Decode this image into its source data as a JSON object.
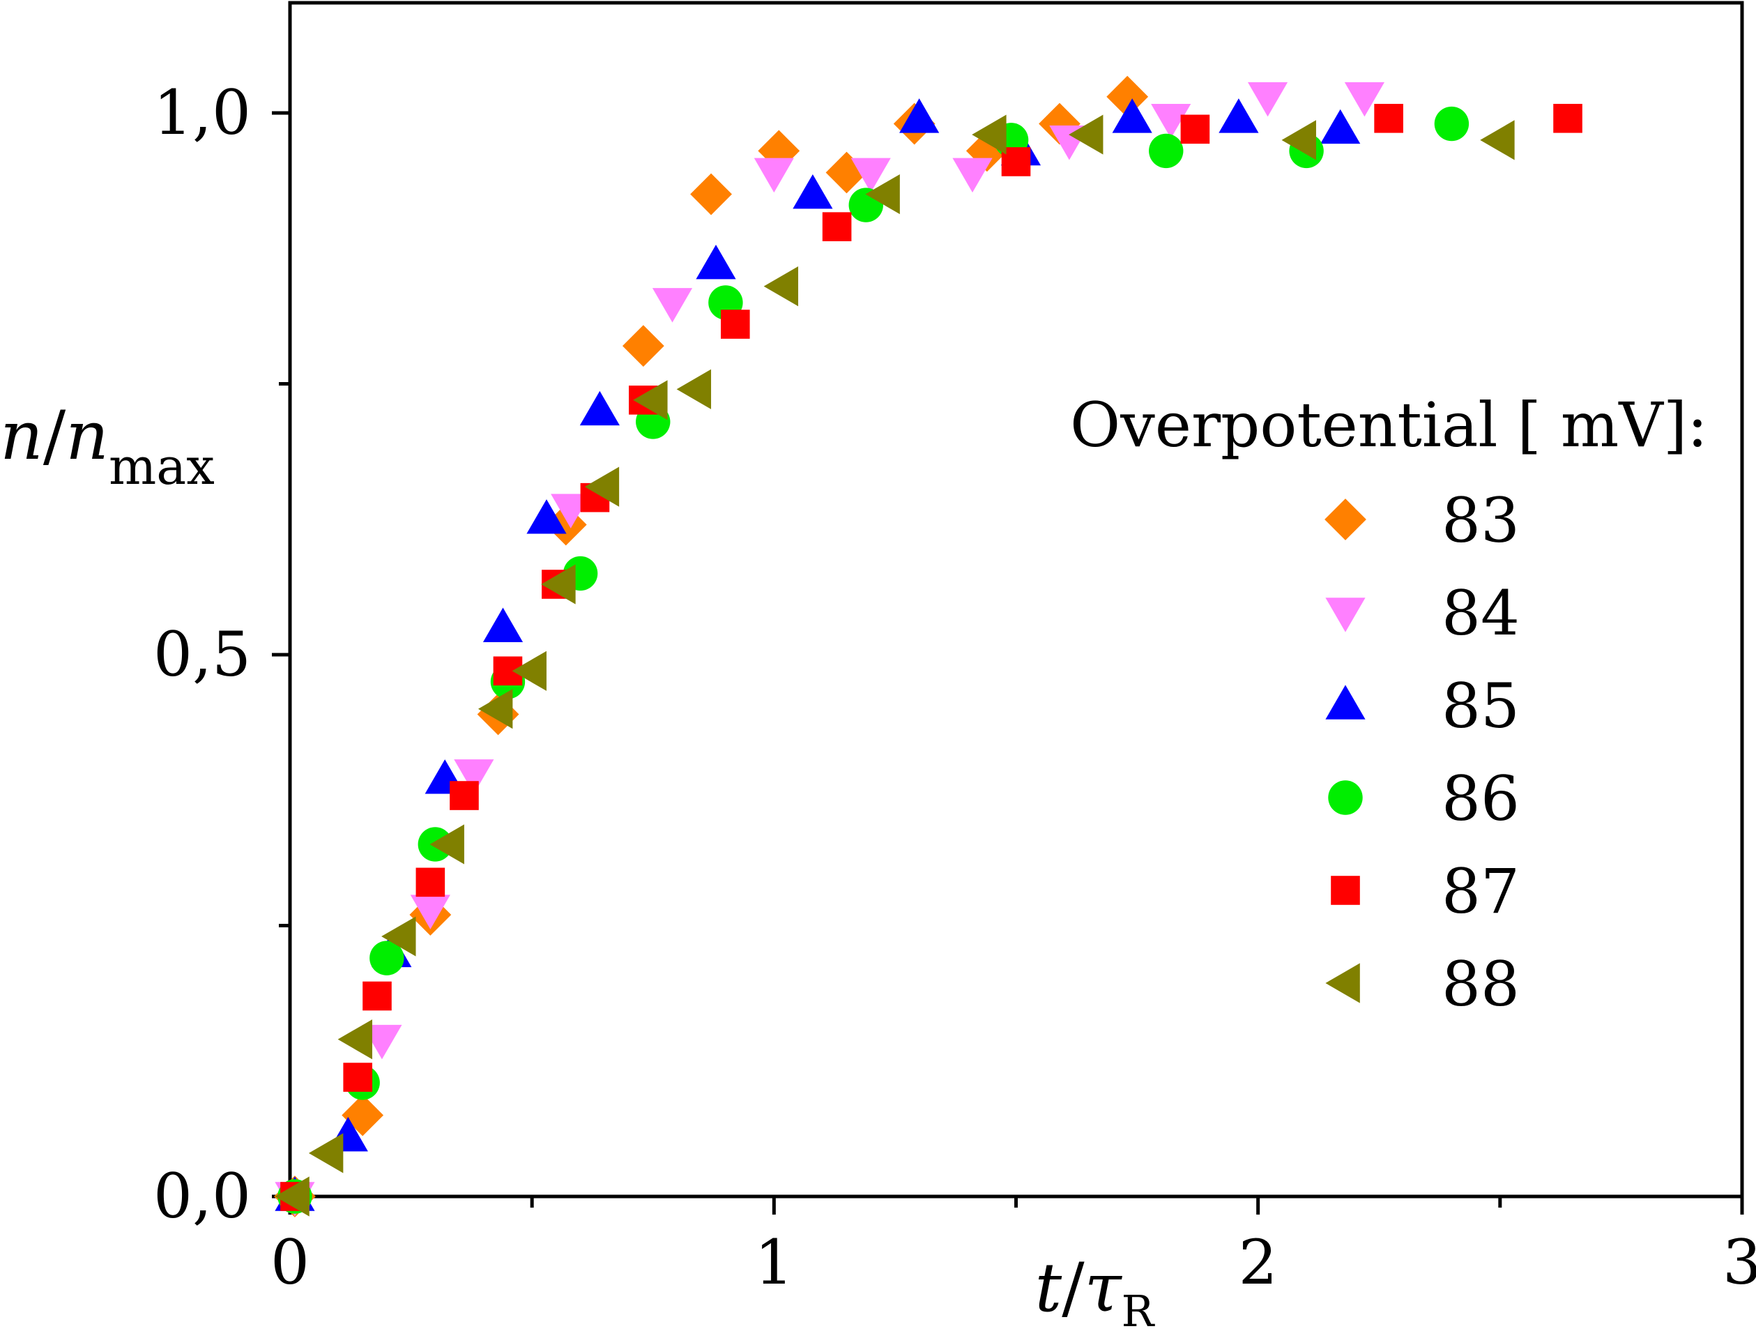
{
  "chart_data": {
    "type": "scatter",
    "x_axis": {
      "label_var": "t",
      "label_sep": "/",
      "label_var2": "τ",
      "label_sub2": "R",
      "range": [
        0,
        3
      ],
      "ticks": [
        {
          "value": 0,
          "label": "0"
        },
        {
          "value": 1,
          "label": "1"
        },
        {
          "value": 2,
          "label": "2"
        },
        {
          "value": 3,
          "label": "3"
        }
      ],
      "minor_ticks": [
        0.5,
        1.5,
        2.5
      ]
    },
    "y_axis": {
      "label_var": "n",
      "label_sep": "/",
      "label_var2": "n",
      "label_sub2": "max",
      "range": [
        0,
        1.1
      ],
      "ticks": [
        {
          "value": 0,
          "label": "0,0"
        },
        {
          "value": 0.5,
          "label": "0,5"
        },
        {
          "value": 1.0,
          "label": "1,0"
        }
      ],
      "minor_ticks": [
        0.25,
        0.75
      ]
    },
    "grid": false,
    "legend": {
      "title": "Overpotential [ mV]:",
      "placement": "right"
    },
    "series": [
      {
        "name": "83",
        "marker": "diamond",
        "color": "#FF8000",
        "points": [
          [
            0.01,
            0.0
          ],
          [
            0.15,
            0.075
          ],
          [
            0.29,
            0.26
          ],
          [
            0.43,
            0.445
          ],
          [
            0.57,
            0.62
          ],
          [
            0.73,
            0.785
          ],
          [
            0.87,
            0.925
          ],
          [
            1.01,
            0.965
          ],
          [
            1.15,
            0.945
          ],
          [
            1.29,
            0.99
          ],
          [
            1.44,
            0.965
          ],
          [
            1.59,
            0.99
          ],
          [
            1.73,
            1.015
          ]
        ]
      },
      {
        "name": "84",
        "marker": "triangle-down",
        "color": "#FF80FF",
        "points": [
          [
            0.01,
            0.0
          ],
          [
            0.19,
            0.145
          ],
          [
            0.29,
            0.265
          ],
          [
            0.38,
            0.39
          ],
          [
            0.58,
            0.635
          ],
          [
            0.79,
            0.825
          ],
          [
            1.0,
            0.945
          ],
          [
            1.2,
            0.945
          ],
          [
            1.41,
            0.945
          ],
          [
            1.61,
            0.975
          ],
          [
            1.82,
            0.995
          ],
          [
            2.02,
            1.015
          ],
          [
            2.22,
            1.015
          ]
        ]
      },
      {
        "name": "85",
        "marker": "triangle-up",
        "color": "#0000FF",
        "points": [
          [
            0.01,
            0.0
          ],
          [
            0.12,
            0.055
          ],
          [
            0.21,
            0.225
          ],
          [
            0.32,
            0.385
          ],
          [
            0.44,
            0.525
          ],
          [
            0.53,
            0.625
          ],
          [
            0.64,
            0.725
          ],
          [
            0.88,
            0.86
          ],
          [
            1.08,
            0.925
          ],
          [
            1.3,
            0.995
          ],
          [
            1.51,
            0.965
          ],
          [
            1.74,
            0.995
          ],
          [
            1.96,
            0.995
          ],
          [
            2.17,
            0.985
          ]
        ]
      },
      {
        "name": "86",
        "marker": "circle",
        "color": "#00EE00",
        "points": [
          [
            0.01,
            0.0
          ],
          [
            0.15,
            0.105
          ],
          [
            0.2,
            0.22
          ],
          [
            0.3,
            0.325
          ],
          [
            0.45,
            0.475
          ],
          [
            0.6,
            0.575
          ],
          [
            0.75,
            0.715
          ],
          [
            0.9,
            0.825
          ],
          [
            1.19,
            0.915
          ],
          [
            1.49,
            0.975
          ],
          [
            1.81,
            0.965
          ],
          [
            2.1,
            0.965
          ],
          [
            2.4,
            0.99
          ]
        ]
      },
      {
        "name": "87",
        "marker": "square",
        "color": "#FF0000",
        "points": [
          [
            0.01,
            0.0
          ],
          [
            0.14,
            0.11
          ],
          [
            0.18,
            0.185
          ],
          [
            0.29,
            0.29
          ],
          [
            0.36,
            0.37
          ],
          [
            0.45,
            0.485
          ],
          [
            0.55,
            0.565
          ],
          [
            0.63,
            0.645
          ],
          [
            0.73,
            0.735
          ],
          [
            0.92,
            0.805
          ],
          [
            1.13,
            0.895
          ],
          [
            1.5,
            0.955
          ],
          [
            1.87,
            0.985
          ],
          [
            2.27,
            0.995
          ],
          [
            2.64,
            0.995
          ]
        ]
      },
      {
        "name": "88",
        "marker": "triangle-left",
        "color": "#808000",
        "points": [
          [
            0.01,
            0.0
          ],
          [
            0.08,
            0.04
          ],
          [
            0.14,
            0.145
          ],
          [
            0.23,
            0.24
          ],
          [
            0.33,
            0.325
          ],
          [
            0.43,
            0.45
          ],
          [
            0.5,
            0.485
          ],
          [
            0.56,
            0.565
          ],
          [
            0.65,
            0.655
          ],
          [
            0.75,
            0.735
          ],
          [
            0.84,
            0.745
          ],
          [
            1.02,
            0.84
          ],
          [
            1.23,
            0.925
          ],
          [
            1.45,
            0.98
          ],
          [
            1.65,
            0.98
          ],
          [
            2.09,
            0.975
          ],
          [
            2.5,
            0.975
          ]
        ]
      }
    ]
  }
}
